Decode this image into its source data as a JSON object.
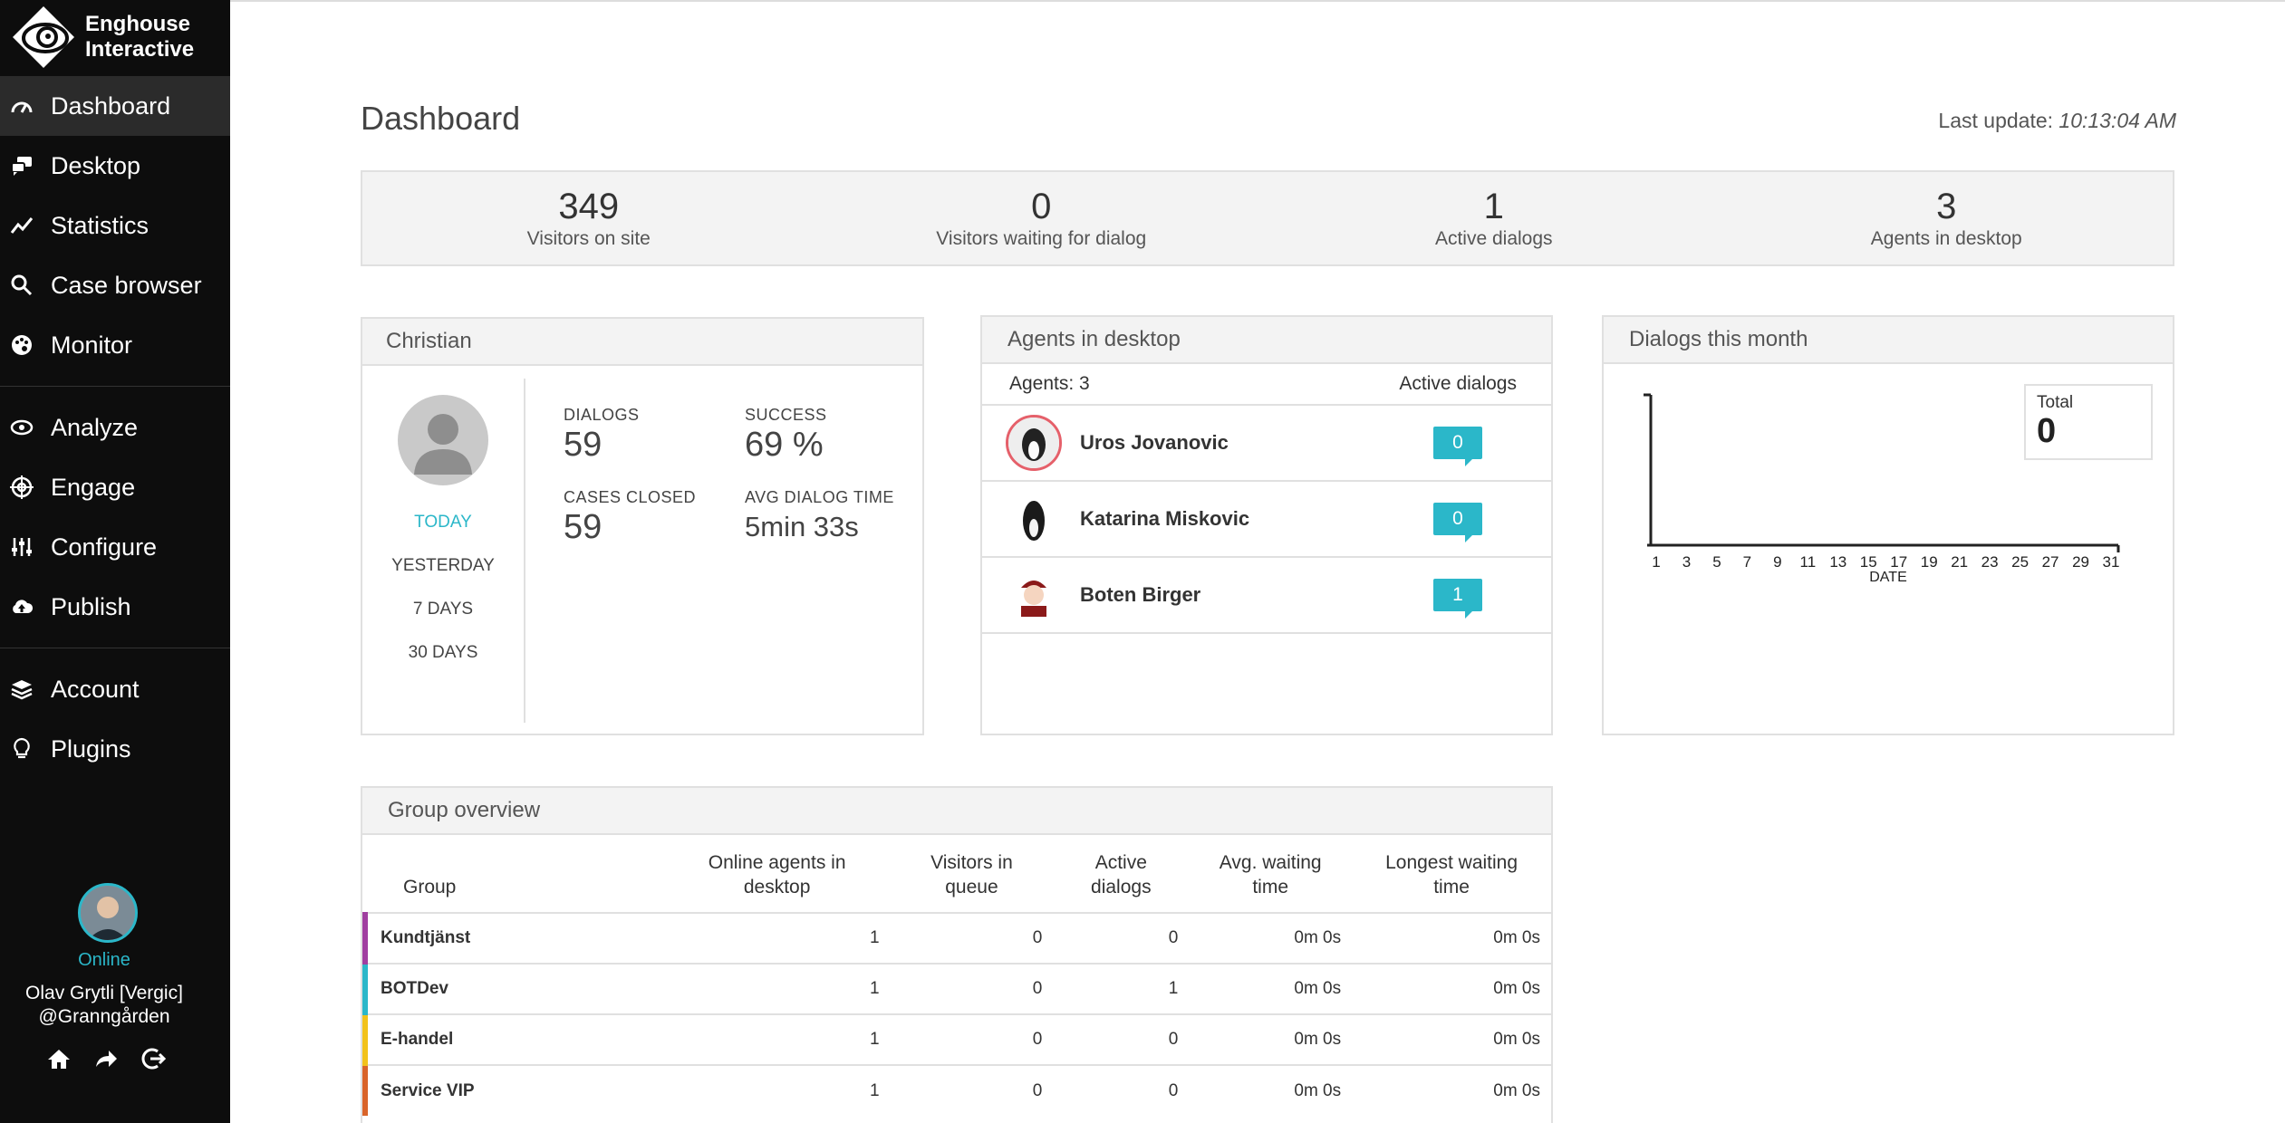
{
  "brand": {
    "line1": "Enghouse",
    "line2": "Interactive"
  },
  "sidebar": {
    "items": [
      {
        "label": "Dashboard",
        "icon": "gauge-icon"
      },
      {
        "label": "Desktop",
        "icon": "chat-bubbles-icon"
      },
      {
        "label": "Statistics",
        "icon": "line-chart-icon"
      },
      {
        "label": "Case browser",
        "icon": "search-icon"
      },
      {
        "label": "Monitor",
        "icon": "palette-icon"
      },
      {
        "label": "Analyze",
        "icon": "eye-icon"
      },
      {
        "label": "Engage",
        "icon": "target-icon"
      },
      {
        "label": "Configure",
        "icon": "sliders-icon"
      },
      {
        "label": "Publish",
        "icon": "cloud-upload-icon"
      },
      {
        "label": "Account",
        "icon": "layers-icon"
      },
      {
        "label": "Plugins",
        "icon": "lightbulb-icon"
      }
    ],
    "active": "Dashboard"
  },
  "profile": {
    "status": "Online",
    "name_line1": "Olav Grytli [Vergic]",
    "name_line2": "@Granngården"
  },
  "header": {
    "title": "Dashboard",
    "last_update_label": "Last update:",
    "last_update_time": "10:13:04 AM"
  },
  "stats": [
    {
      "value": "349",
      "label": "Visitors on site"
    },
    {
      "value": "0",
      "label": "Visitors waiting for dialog"
    },
    {
      "value": "1",
      "label": "Active dialogs"
    },
    {
      "value": "3",
      "label": "Agents in desktop"
    }
  ],
  "christian": {
    "title": "Christian",
    "periods": [
      "TODAY",
      "YESTERDAY",
      "7 DAYS",
      "30 DAYS"
    ],
    "metrics": {
      "dialogs_label": "DIALOGS",
      "dialogs_value": "59",
      "success_label": "SUCCESS",
      "success_value": "69 %",
      "cases_label": "CASES CLOSED",
      "cases_value": "59",
      "avg_label": "AVG DIALOG TIME",
      "avg_value": "5min 33s"
    }
  },
  "agents": {
    "title": "Agents in desktop",
    "count_label": "Agents: 3",
    "active_label": "Active dialogs",
    "list": [
      {
        "name": "Uros Jovanovic",
        "active": "0"
      },
      {
        "name": "Katarina Miskovic",
        "active": "0"
      },
      {
        "name": "Boten Birger",
        "active": "1"
      }
    ]
  },
  "dialogs_month": {
    "title": "Dialogs this month",
    "total_label": "Total",
    "total_value": "0"
  },
  "chart_data": {
    "type": "line",
    "x": [
      1,
      3,
      5,
      7,
      9,
      11,
      13,
      15,
      17,
      19,
      21,
      23,
      25,
      27,
      29,
      31
    ],
    "xticks": [
      "1",
      "3",
      "5",
      "7",
      "9",
      "11",
      "13",
      "15",
      "17",
      "19",
      "21",
      "23",
      "25",
      "27",
      "29",
      "31"
    ],
    "series": [],
    "xlabel": "DATE",
    "ylabel": "",
    "xlim": [
      1,
      31
    ],
    "grid": false
  },
  "groups": {
    "title": "Group overview",
    "headers": {
      "group": "Group",
      "online": [
        "Online agents in",
        "desktop"
      ],
      "queue": [
        "Visitors in",
        "queue"
      ],
      "active": [
        "Active",
        "dialogs"
      ],
      "avg": [
        "Avg. waiting",
        "time"
      ],
      "longest": [
        "Longest waiting",
        "time"
      ]
    },
    "rows": [
      {
        "name": "Kundtjänst",
        "color": "#a03ea0",
        "online": "1",
        "queue": "0",
        "active": "0",
        "avg": "0m 0s",
        "longest": "0m 0s"
      },
      {
        "name": "BOTDev",
        "color": "#2bb7c9",
        "online": "1",
        "queue": "0",
        "active": "1",
        "avg": "0m 0s",
        "longest": "0m 0s"
      },
      {
        "name": "E-handel",
        "color": "#f2c21b",
        "online": "1",
        "queue": "0",
        "active": "0",
        "avg": "0m 0s",
        "longest": "0m 0s"
      },
      {
        "name": "Service VIP",
        "color": "#d9642a",
        "online": "1",
        "queue": "0",
        "active": "0",
        "avg": "0m 0s",
        "longest": "0m 0s"
      }
    ]
  }
}
